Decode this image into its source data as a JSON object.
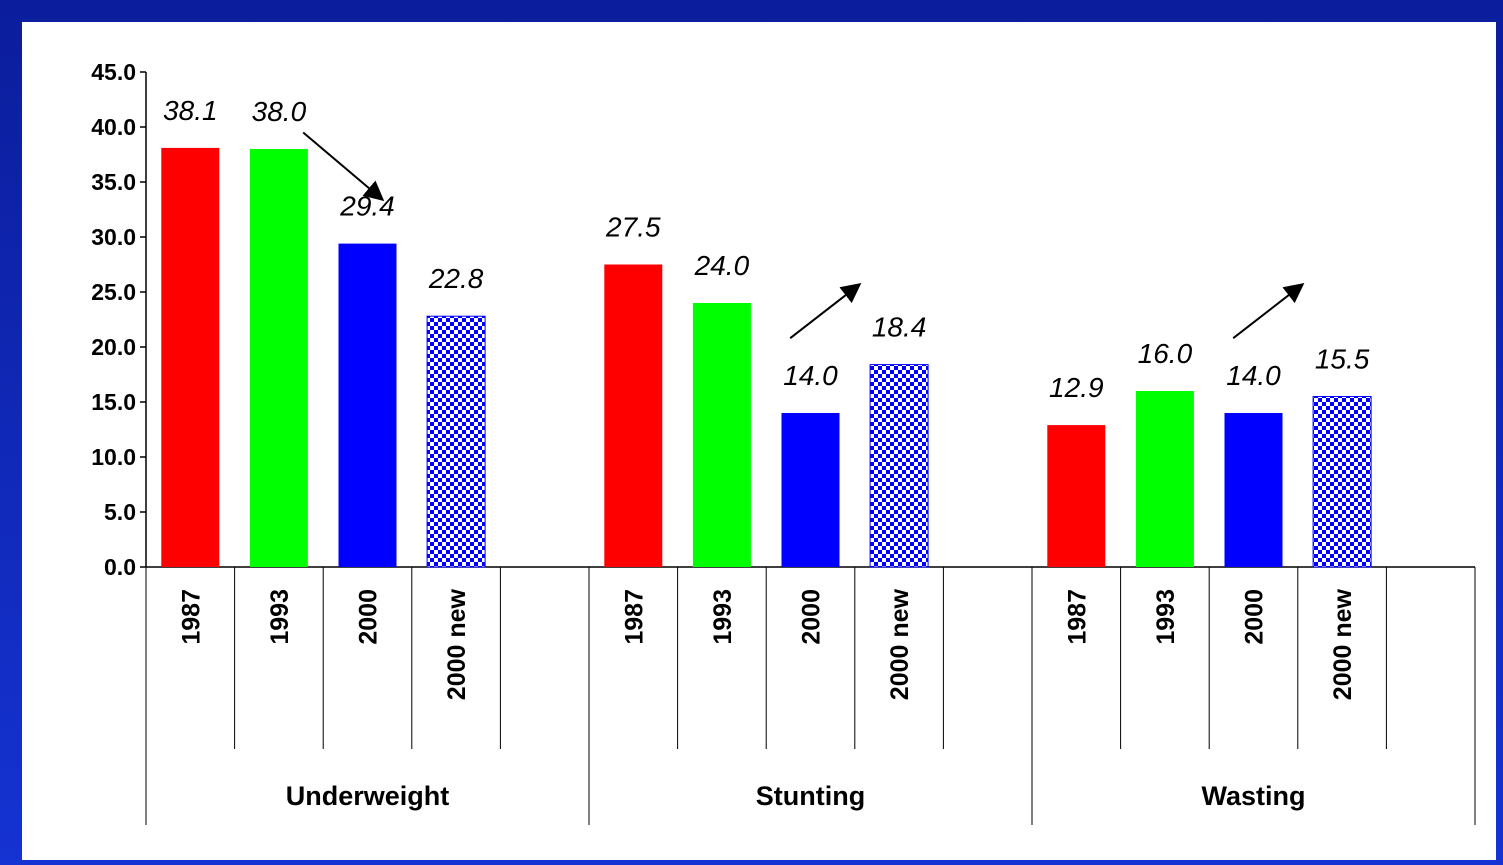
{
  "chart_data": {
    "type": "bar",
    "ylim": [
      0,
      45
    ],
    "yticks": [
      "0.0",
      "5.0",
      "10.0",
      "15.0",
      "20.0",
      "25.0",
      "30.0",
      "35.0",
      "40.0",
      "45.0"
    ],
    "groups": [
      {
        "name": "Underweight",
        "bars": [
          {
            "category": "1987",
            "value": 38.1,
            "label": "38.1",
            "color": "#ff0000",
            "pattern": false
          },
          {
            "category": "1993",
            "value": 38.0,
            "label": "38.0",
            "color": "#00ff00",
            "pattern": false
          },
          {
            "category": "2000",
            "value": 29.4,
            "label": "29.4",
            "color": "#0000ff",
            "pattern": false
          },
          {
            "category": "2000 new",
            "value": 22.8,
            "label": "22.8",
            "color": "#0000ff",
            "pattern": true
          }
        ],
        "trend_arrow": "down"
      },
      {
        "name": "Stunting",
        "bars": [
          {
            "category": "1987",
            "value": 27.5,
            "label": "27.5",
            "color": "#ff0000",
            "pattern": false
          },
          {
            "category": "1993",
            "value": 24.0,
            "label": "24.0",
            "color": "#00ff00",
            "pattern": false
          },
          {
            "category": "2000",
            "value": 14.0,
            "label": "14.0",
            "color": "#0000ff",
            "pattern": false
          },
          {
            "category": "2000 new",
            "value": 18.4,
            "label": "18.4",
            "color": "#0000ff",
            "pattern": true
          }
        ],
        "trend_arrow": "up"
      },
      {
        "name": "Wasting",
        "bars": [
          {
            "category": "1987",
            "value": 12.9,
            "label": "12.9",
            "color": "#ff0000",
            "pattern": false
          },
          {
            "category": "1993",
            "value": 16.0,
            "label": "16.0",
            "color": "#00ff00",
            "pattern": false
          },
          {
            "category": "2000",
            "value": 14.0,
            "label": "14.0",
            "color": "#0000ff",
            "pattern": false
          },
          {
            "category": "2000 new",
            "value": 15.5,
            "label": "15.5",
            "color": "#0000ff",
            "pattern": true
          }
        ],
        "trend_arrow": "up"
      }
    ],
    "grid": false,
    "legend": "none"
  }
}
